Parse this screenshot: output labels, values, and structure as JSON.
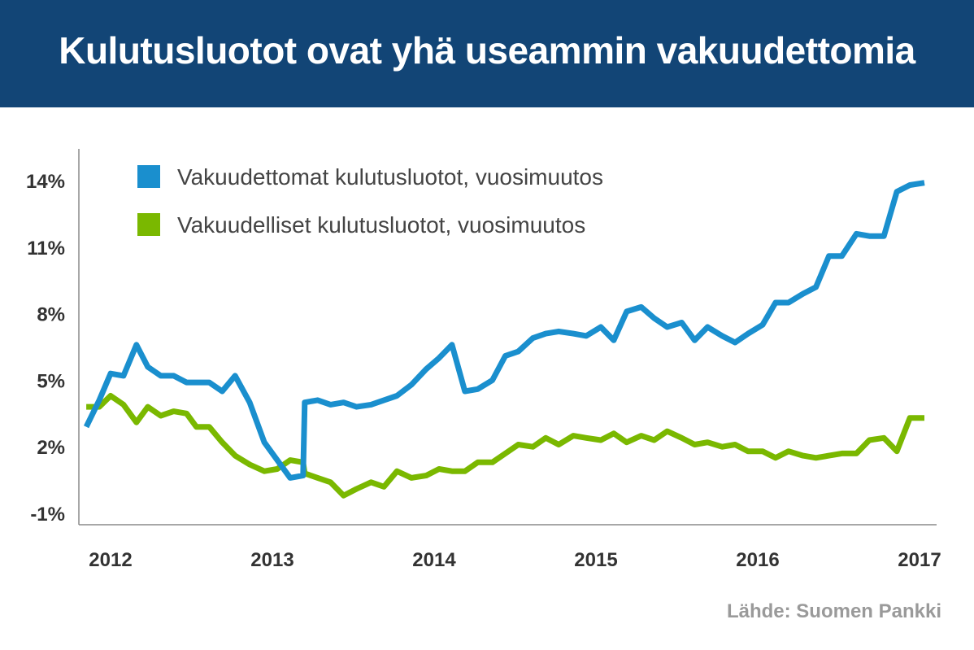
{
  "header": {
    "title": "Kulutusluotot ovat yhä useammin vakuudettomia"
  },
  "footer": {
    "source": "Lähde: Suomen Pankki"
  },
  "colors": {
    "banner": "#124576",
    "unsecured": "#1a8fce",
    "secured": "#7ab800"
  },
  "chart_data": {
    "type": "line",
    "title": "Kulutusluotot ovat yhä useammin vakuudettomia",
    "xlabel": "",
    "ylabel": "",
    "xlim": [
      2011.85,
      2017.05
    ],
    "ylim": [
      -1.5,
      15.5
    ],
    "y_ticks": [
      -1,
      2,
      5,
      8,
      11,
      14
    ],
    "y_tick_labels": [
      "-1%",
      "2%",
      "5%",
      "8%",
      "11%",
      "14%"
    ],
    "x_ticks": [
      2012,
      2013,
      2014,
      2015,
      2016,
      2017
    ],
    "x_tick_labels": [
      "2012",
      "2013",
      "2014",
      "2015",
      "2016",
      "2017"
    ],
    "grid": false,
    "legend": "top-left",
    "series": [
      {
        "name": "Vakuudettomat kulutusluotot, vuosimuutos",
        "color": "#1a8fce",
        "x": [
          2011.85,
          2011.93,
          2012.0,
          2012.08,
          2012.16,
          2012.23,
          2012.31,
          2012.39,
          2012.47,
          2012.53,
          2012.61,
          2012.69,
          2012.77,
          2012.86,
          2012.95,
          2013.03,
          2013.11,
          2013.19,
          2013.2,
          2013.28,
          2013.36,
          2013.44,
          2013.52,
          2013.61,
          2013.69,
          2013.77,
          2013.86,
          2013.95,
          2014.03,
          2014.11,
          2014.19,
          2014.27,
          2014.36,
          2014.44,
          2014.52,
          2014.61,
          2014.69,
          2014.77,
          2014.86,
          2014.94,
          2015.03,
          2015.11,
          2015.19,
          2015.28,
          2015.36,
          2015.44,
          2015.53,
          2015.61,
          2015.69,
          2015.78,
          2015.86,
          2015.94,
          2016.03,
          2016.11,
          2016.19,
          2016.28,
          2016.36,
          2016.44,
          2016.52,
          2016.61,
          2016.69,
          2016.78,
          2016.86,
          2016.94,
          2017.03
        ],
        "values": [
          2.9,
          4.1,
          5.3,
          5.2,
          6.6,
          5.6,
          5.2,
          5.2,
          4.9,
          4.9,
          4.9,
          4.5,
          5.2,
          4.0,
          2.2,
          1.4,
          0.6,
          0.7,
          4.0,
          4.1,
          3.9,
          4.0,
          3.8,
          3.9,
          4.1,
          4.3,
          4.8,
          5.5,
          6.0,
          6.6,
          4.5,
          4.6,
          5.0,
          6.1,
          6.3,
          6.9,
          7.1,
          7.2,
          7.1,
          7.0,
          7.4,
          6.8,
          8.1,
          8.3,
          7.8,
          7.4,
          7.6,
          6.8,
          7.4,
          7.0,
          6.7,
          7.1,
          7.5,
          8.5,
          8.5,
          8.9,
          9.2,
          10.6,
          10.6,
          11.6,
          11.5,
          11.5,
          13.5,
          13.8,
          13.9
        ]
      },
      {
        "name": "Vakuudelliset kulutusluotot, vuosimuutos",
        "color": "#7ab800",
        "x": [
          2011.85,
          2011.93,
          2012.0,
          2012.08,
          2012.16,
          2012.23,
          2012.31,
          2012.39,
          2012.47,
          2012.53,
          2012.61,
          2012.69,
          2012.77,
          2012.86,
          2012.95,
          2013.03,
          2013.11,
          2013.19,
          2013.2,
          2013.28,
          2013.36,
          2013.44,
          2013.52,
          2013.61,
          2013.69,
          2013.77,
          2013.86,
          2013.95,
          2014.03,
          2014.11,
          2014.19,
          2014.27,
          2014.36,
          2014.44,
          2014.52,
          2014.61,
          2014.69,
          2014.77,
          2014.86,
          2014.94,
          2015.03,
          2015.11,
          2015.19,
          2015.28,
          2015.36,
          2015.44,
          2015.53,
          2015.61,
          2015.69,
          2015.78,
          2015.86,
          2015.94,
          2016.03,
          2016.11,
          2016.19,
          2016.28,
          2016.36,
          2016.44,
          2016.52,
          2016.61,
          2016.69,
          2016.78,
          2016.86,
          2016.94,
          2017.03
        ],
        "values": [
          3.8,
          3.8,
          4.3,
          3.9,
          3.1,
          3.8,
          3.4,
          3.6,
          3.5,
          2.9,
          2.9,
          2.2,
          1.6,
          1.2,
          0.9,
          1.0,
          1.4,
          1.3,
          0.8,
          0.6,
          0.4,
          -0.2,
          0.1,
          0.4,
          0.2,
          0.9,
          0.6,
          0.7,
          1.0,
          0.9,
          0.9,
          1.3,
          1.3,
          1.7,
          2.1,
          2.0,
          2.4,
          2.1,
          2.5,
          2.4,
          2.3,
          2.6,
          2.2,
          2.5,
          2.3,
          2.7,
          2.4,
          2.1,
          2.2,
          2.0,
          2.1,
          1.8,
          1.8,
          1.5,
          1.8,
          1.6,
          1.5,
          1.6,
          1.7,
          1.7,
          2.3,
          2.4,
          1.8,
          3.3,
          3.3
        ]
      }
    ]
  }
}
